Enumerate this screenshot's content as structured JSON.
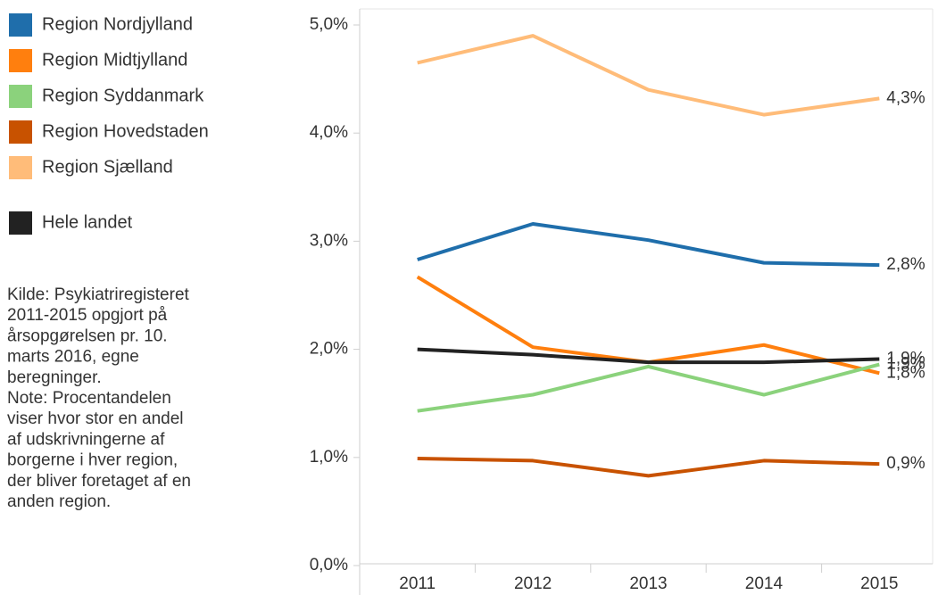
{
  "chart_data": {
    "type": "line",
    "categories": [
      "2011",
      "2012",
      "2013",
      "2014",
      "2015"
    ],
    "series": [
      {
        "name": "Region Nordjylland",
        "color": "#1f6eab",
        "values": [
          2.83,
          3.16,
          3.01,
          2.8,
          2.78
        ],
        "value_labels": [
          null,
          null,
          null,
          null,
          "2,8%"
        ]
      },
      {
        "name": "Region Midtjylland",
        "color": "#ff7f0e",
        "values": [
          2.67,
          2.02,
          1.88,
          2.04,
          1.78
        ],
        "value_labels": [
          null,
          null,
          null,
          null,
          "1,8%"
        ]
      },
      {
        "name": "Region Syddanmark",
        "color": "#8bd27c",
        "values": [
          1.43,
          1.58,
          1.84,
          1.58,
          1.86
        ],
        "value_labels": [
          null,
          null,
          null,
          null,
          "1,9%"
        ]
      },
      {
        "name": "Region Hovedstaden",
        "color": "#c85200",
        "values": [
          0.99,
          0.97,
          0.83,
          0.97,
          0.94
        ],
        "value_labels": [
          null,
          null,
          null,
          null,
          "0,9%"
        ]
      },
      {
        "name": "Region Sjælland",
        "color": "#ffbc79",
        "values": [
          4.65,
          4.9,
          4.4,
          4.17,
          4.32
        ],
        "value_labels": [
          null,
          null,
          null,
          null,
          "4,3%"
        ]
      },
      {
        "name": "Hele landet",
        "color": "#222222",
        "values": [
          2.0,
          1.95,
          1.88,
          1.88,
          1.91
        ],
        "value_labels": [
          null,
          null,
          null,
          null,
          "1,9%"
        ]
      }
    ],
    "ylim": [
      0,
      5
    ],
    "yticks": [
      {
        "value": 0,
        "label": "0,0%"
      },
      {
        "value": 1,
        "label": "1,0%"
      },
      {
        "value": 2,
        "label": "2,0%"
      },
      {
        "value": 3,
        "label": "3,0%"
      },
      {
        "value": 4,
        "label": "4,0%"
      },
      {
        "value": 5,
        "label": "5,0%"
      }
    ],
    "note": [
      "Kilde: Psykiatriregisteret",
      "2011-2015 opgjort på",
      "årsopgørelsen pr. 10.",
      "marts 2016, egne",
      "beregninger.",
      "Note: Procentandelen",
      "viser hvor stor en andel",
      "af udskrivningerne af",
      "borgerne i hver region,",
      "der bliver foretaget af en",
      "anden region."
    ]
  }
}
